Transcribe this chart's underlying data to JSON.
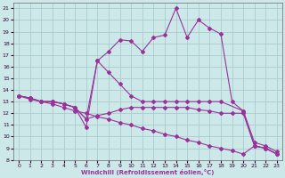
{
  "xlabel": "Windchill (Refroidissement éolien,°C)",
  "ylabel": "",
  "background_color": "#cde8e8",
  "grid_color": "#aacccc",
  "line_color": "#993399",
  "xlim": [
    -0.5,
    23.5
  ],
  "ylim": [
    8,
    21.5
  ],
  "xticks": [
    0,
    1,
    2,
    3,
    4,
    5,
    6,
    7,
    8,
    9,
    10,
    11,
    12,
    13,
    14,
    15,
    16,
    17,
    18,
    19,
    20,
    21,
    22,
    23
  ],
  "yticks": [
    8,
    9,
    10,
    11,
    12,
    13,
    14,
    15,
    16,
    17,
    18,
    19,
    20,
    21
  ],
  "lines": [
    {
      "x": [
        0,
        1,
        2,
        3,
        4,
        5,
        6,
        7,
        8,
        9,
        10,
        11,
        12,
        13,
        14,
        15,
        16,
        17,
        18,
        19,
        20,
        21,
        22,
        23
      ],
      "y": [
        13.5,
        13.3,
        13.0,
        13.0,
        12.8,
        12.5,
        10.8,
        16.5,
        17.3,
        18.3,
        18.2,
        17.3,
        18.5,
        18.7,
        21.0,
        18.5,
        20.0,
        19.3,
        18.8,
        13.0,
        12.2,
        9.2,
        9.0,
        8.5
      ]
    },
    {
      "x": [
        0,
        1,
        2,
        3,
        4,
        5,
        6,
        7,
        8,
        9,
        10,
        11,
        12,
        13,
        14,
        15,
        16,
        17,
        18,
        20,
        21,
        22,
        23
      ],
      "y": [
        13.5,
        13.3,
        13.0,
        13.0,
        12.8,
        12.5,
        11.5,
        16.5,
        15.5,
        14.5,
        13.5,
        13.0,
        13.0,
        13.0,
        13.0,
        13.0,
        13.0,
        13.0,
        13.0,
        12.2,
        9.5,
        9.2,
        8.7
      ]
    },
    {
      "x": [
        0,
        1,
        2,
        3,
        4,
        5,
        6,
        7,
        8,
        9,
        10,
        11,
        12,
        13,
        14,
        15,
        16,
        17,
        18,
        19,
        20,
        21,
        22,
        23
      ],
      "y": [
        13.5,
        13.3,
        13.0,
        13.0,
        12.8,
        12.5,
        11.5,
        11.8,
        12.0,
        12.3,
        12.5,
        12.5,
        12.5,
        12.5,
        12.5,
        12.5,
        12.3,
        12.2,
        12.0,
        12.0,
        12.0,
        9.2,
        9.0,
        8.5
      ]
    },
    {
      "x": [
        0,
        1,
        2,
        3,
        4,
        5,
        6,
        7,
        8,
        9,
        10,
        11,
        12,
        13,
        14,
        15,
        16,
        17,
        18,
        19,
        20,
        21,
        22,
        23
      ],
      "y": [
        13.5,
        13.2,
        13.0,
        12.8,
        12.5,
        12.2,
        12.0,
        11.7,
        11.5,
        11.2,
        11.0,
        10.7,
        10.5,
        10.2,
        10.0,
        9.7,
        9.5,
        9.2,
        9.0,
        8.8,
        8.5,
        9.2,
        9.0,
        8.5
      ]
    }
  ]
}
